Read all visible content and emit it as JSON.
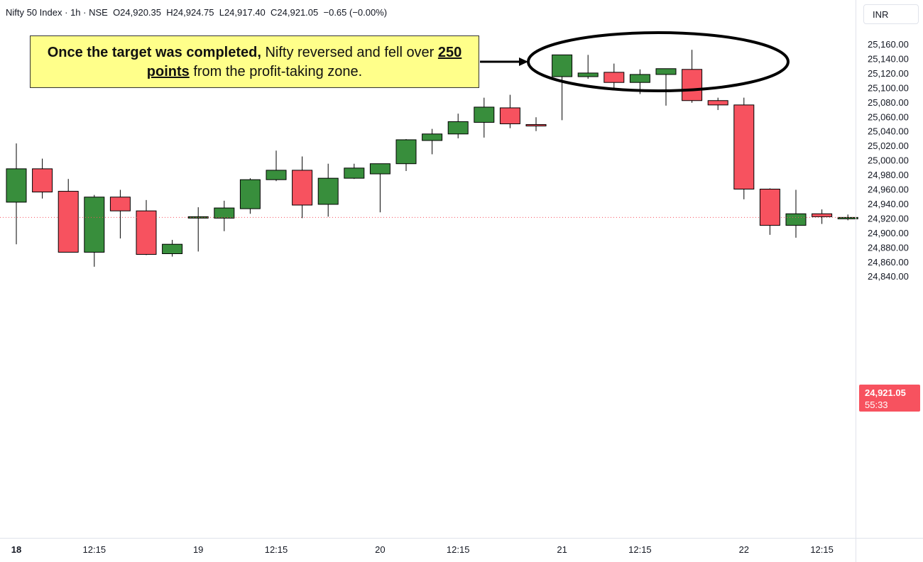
{
  "header": {
    "symbol": "Nifty 50 Index",
    "interval": "1h",
    "exchange": "NSE",
    "open": "O24,920.35",
    "high": "H24,924.75",
    "low": "L24,917.40",
    "close": "C24,921.05",
    "change": "−0.65 (−0.00%)"
  },
  "currency": "INR",
  "last_price": {
    "value": "24,921.05",
    "countdown": "55:33"
  },
  "annotation": {
    "bold_lead": "Once the target was completed,",
    "text_1": " Nifty reversed and fell over ",
    "emphasis": "250 points",
    "text_2": " from the profit-taking zone."
  },
  "colors": {
    "up": "#388e3c",
    "down": "#f7525f",
    "price_tag": "#f7525f",
    "note_bg": "#ffff8a"
  },
  "chart_data": {
    "type": "candlestick",
    "y_ticks": [
      "25,160.00",
      "25,140.00",
      "25,120.00",
      "25,100.00",
      "25,080.00",
      "25,060.00",
      "25,040.00",
      "25,020.00",
      "25,000.00",
      "24,980.00",
      "24,960.00",
      "24,940.00",
      "24,920.00",
      "24,900.00",
      "24,880.00",
      "24,860.00",
      "24,840.00"
    ],
    "ylim": [
      24830,
      25175
    ],
    "x_labels": [
      {
        "label": "18",
        "bar": 0,
        "bold": true
      },
      {
        "label": "12:15",
        "bar": 3
      },
      {
        "label": "19",
        "bar": 7
      },
      {
        "label": "12:15",
        "bar": 10
      },
      {
        "label": "20",
        "bar": 14
      },
      {
        "label": "12:15",
        "bar": 17
      },
      {
        "label": "21",
        "bar": 21
      },
      {
        "label": "12:15",
        "bar": 24
      },
      {
        "label": "22",
        "bar": 28
      },
      {
        "label": "12:15",
        "bar": 31
      }
    ],
    "candles": [
      {
        "o": 24942,
        "h": 25023,
        "l": 24884,
        "c": 24988
      },
      {
        "o": 24988,
        "h": 25002,
        "l": 24947,
        "c": 24956
      },
      {
        "o": 24957,
        "h": 24974,
        "l": 24873,
        "c": 24873
      },
      {
        "o": 24873,
        "h": 24952,
        "l": 24853,
        "c": 24949
      },
      {
        "o": 24949,
        "h": 24959,
        "l": 24892,
        "c": 24930
      },
      {
        "o": 24930,
        "h": 24945,
        "l": 24869,
        "c": 24870
      },
      {
        "o": 24871,
        "h": 24890,
        "l": 24867,
        "c": 24884
      },
      {
        "o": 24921,
        "h": 24935,
        "l": 24874,
        "c": 24922
      },
      {
        "o": 24920,
        "h": 24944,
        "l": 24902,
        "c": 24934
      },
      {
        "o": 24933,
        "h": 24975,
        "l": 24926,
        "c": 24973
      },
      {
        "o": 24973,
        "h": 25013,
        "l": 24971,
        "c": 24986
      },
      {
        "o": 24986,
        "h": 25005,
        "l": 24920,
        "c": 24938
      },
      {
        "o": 24939,
        "h": 24995,
        "l": 24922,
        "c": 24975
      },
      {
        "o": 24975,
        "h": 24995,
        "l": 24974,
        "c": 24989
      },
      {
        "o": 24981,
        "h": 24995,
        "l": 24928,
        "c": 24995
      },
      {
        "o": 24995,
        "h": 25029,
        "l": 24985,
        "c": 25028
      },
      {
        "o": 25027,
        "h": 25043,
        "l": 25008,
        "c": 25036
      },
      {
        "o": 25036,
        "h": 25064,
        "l": 25030,
        "c": 25053
      },
      {
        "o": 25052,
        "h": 25086,
        "l": 25031,
        "c": 25073
      },
      {
        "o": 25072,
        "h": 25090,
        "l": 25044,
        "c": 25050
      },
      {
        "o": 25049,
        "h": 25059,
        "l": 25040,
        "c": 25047
      },
      {
        "o": 25115,
        "h": 25145,
        "l": 25055,
        "c": 25145
      },
      {
        "o": 25115,
        "h": 25145,
        "l": 25112,
        "c": 25120
      },
      {
        "o": 25121,
        "h": 25133,
        "l": 25096,
        "c": 25107
      },
      {
        "o": 25107,
        "h": 25125,
        "l": 25091,
        "c": 25118
      },
      {
        "o": 25118,
        "h": 25126,
        "l": 25075,
        "c": 25126
      },
      {
        "o": 25125,
        "h": 25152,
        "l": 25079,
        "c": 25082
      },
      {
        "o": 25082,
        "h": 25086,
        "l": 25069,
        "c": 25076
      },
      {
        "o": 25076,
        "h": 25086,
        "l": 24946,
        "c": 24960
      },
      {
        "o": 24960,
        "h": 24961,
        "l": 24897,
        "c": 24910
      },
      {
        "o": 24910,
        "h": 24959,
        "l": 24893,
        "c": 24926
      },
      {
        "o": 24926,
        "h": 24932,
        "l": 24912,
        "c": 24922
      },
      {
        "o": 24921,
        "h": 24925,
        "l": 24917,
        "c": 24921
      }
    ]
  }
}
